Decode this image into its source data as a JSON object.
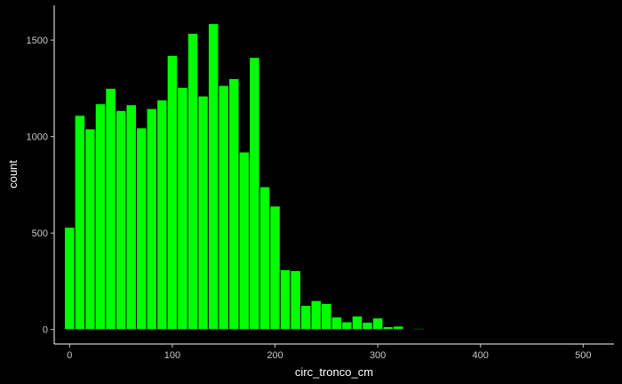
{
  "chart_data": {
    "type": "bar",
    "xlabel": "circ_tronco_cm",
    "ylabel": "count",
    "title": "",
    "grid": false,
    "bar_color": "#00ff00",
    "bar_outline": "#000000",
    "background": "#000000",
    "axis_color": "#ffffff",
    "xlim": [
      -15,
      530
    ],
    "ylim": [
      -75,
      1680
    ],
    "bin_width": 10,
    "x_ticks": [
      0,
      100,
      200,
      300,
      400,
      500
    ],
    "x_tick_labels": [
      "0",
      "100",
      "200",
      "300",
      "400",
      "500"
    ],
    "y_ticks": [
      0,
      500,
      1000,
      1500
    ],
    "y_tick_labels": [
      "0",
      "500",
      "1000",
      "1500"
    ],
    "bins": [
      {
        "x": 0,
        "count": 530
      },
      {
        "x": 10,
        "count": 1110
      },
      {
        "x": 20,
        "count": 1040
      },
      {
        "x": 30,
        "count": 1170
      },
      {
        "x": 40,
        "count": 1250
      },
      {
        "x": 50,
        "count": 1135
      },
      {
        "x": 60,
        "count": 1165
      },
      {
        "x": 70,
        "count": 1045
      },
      {
        "x": 80,
        "count": 1145
      },
      {
        "x": 90,
        "count": 1190
      },
      {
        "x": 100,
        "count": 1420
      },
      {
        "x": 110,
        "count": 1255
      },
      {
        "x": 120,
        "count": 1535
      },
      {
        "x": 130,
        "count": 1210
      },
      {
        "x": 140,
        "count": 1585
      },
      {
        "x": 150,
        "count": 1265
      },
      {
        "x": 160,
        "count": 1300
      },
      {
        "x": 170,
        "count": 920
      },
      {
        "x": 180,
        "count": 1410
      },
      {
        "x": 190,
        "count": 740
      },
      {
        "x": 200,
        "count": 640
      },
      {
        "x": 210,
        "count": 310
      },
      {
        "x": 220,
        "count": 305
      },
      {
        "x": 230,
        "count": 125
      },
      {
        "x": 240,
        "count": 150
      },
      {
        "x": 250,
        "count": 135
      },
      {
        "x": 260,
        "count": 65
      },
      {
        "x": 270,
        "count": 40
      },
      {
        "x": 280,
        "count": 70
      },
      {
        "x": 290,
        "count": 38
      },
      {
        "x": 300,
        "count": 60
      },
      {
        "x": 310,
        "count": 15
      },
      {
        "x": 320,
        "count": 18
      },
      {
        "x": 330,
        "count": 2
      },
      {
        "x": 340,
        "count": 6
      }
    ]
  }
}
